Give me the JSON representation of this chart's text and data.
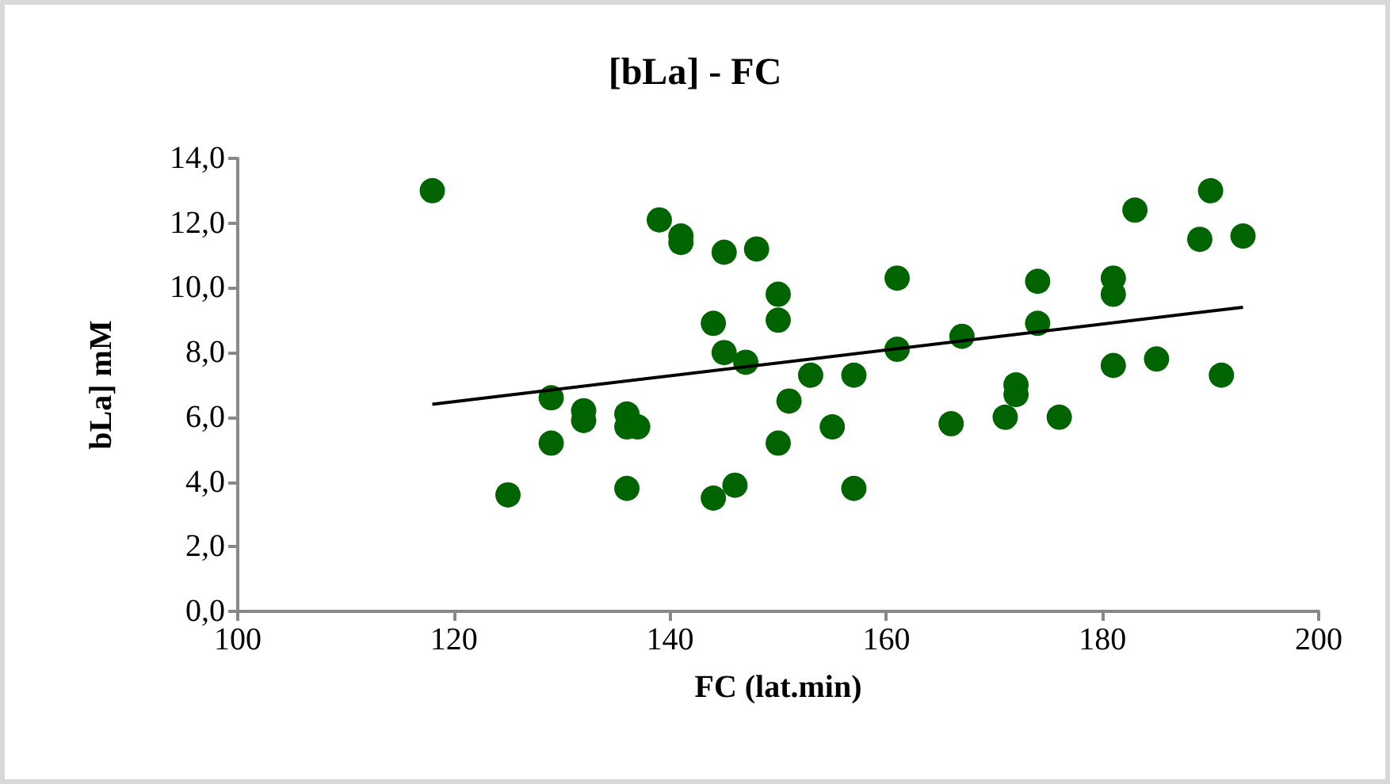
{
  "chart_data": {
    "type": "scatter",
    "title": "[bLa] - FC",
    "xlabel": "FC (lat.min)",
    "ylabel": "bLa] mM",
    "xlim": [
      100,
      200
    ],
    "xticks": [
      100,
      120,
      140,
      160,
      180,
      200
    ],
    "ylim": [
      0,
      14
    ],
    "yticks": [
      {
        "value": 0,
        "label": "0,0"
      },
      {
        "value": 2,
        "label": "2,0"
      },
      {
        "value": 4,
        "label": "4,0"
      },
      {
        "value": 6,
        "label": "6,0"
      },
      {
        "value": 8,
        "label": "8,0"
      },
      {
        "value": 10,
        "label": "10,0"
      },
      {
        "value": 12,
        "label": "12,0"
      },
      {
        "value": 14,
        "label": "14,0"
      }
    ],
    "grid": false,
    "marker": "circle",
    "series": [
      {
        "color": "#006400",
        "x": [
          118,
          125,
          129,
          129,
          132,
          132,
          136,
          136,
          137,
          136,
          139,
          141,
          141,
          144,
          144,
          145,
          145,
          146,
          147,
          148,
          150,
          150,
          150,
          151,
          153,
          155,
          157,
          157,
          161,
          161,
          166,
          167,
          171,
          172,
          172,
          174,
          174,
          176,
          181,
          181,
          181,
          183,
          185,
          189,
          190,
          191,
          193
        ],
        "values": [
          13.0,
          3.6,
          6.6,
          5.2,
          6.2,
          5.9,
          6.1,
          5.7,
          5.7,
          3.8,
          12.1,
          11.6,
          11.4,
          8.9,
          3.5,
          11.1,
          8.0,
          3.9,
          7.7,
          11.2,
          9.8,
          9.0,
          5.2,
          6.5,
          7.3,
          5.7,
          7.3,
          3.8,
          10.3,
          8.1,
          5.8,
          8.5,
          6.0,
          7.0,
          6.7,
          10.2,
          8.9,
          6.0,
          10.3,
          9.8,
          7.6,
          12.4,
          7.8,
          11.5,
          13.0,
          7.3,
          11.6
        ]
      },
      {
        "type": "line",
        "color": "#000000",
        "x": [
          118,
          193
        ],
        "values": [
          6.4,
          9.4
        ],
        "marker": "none",
        "line_style": "solid"
      }
    ]
  }
}
